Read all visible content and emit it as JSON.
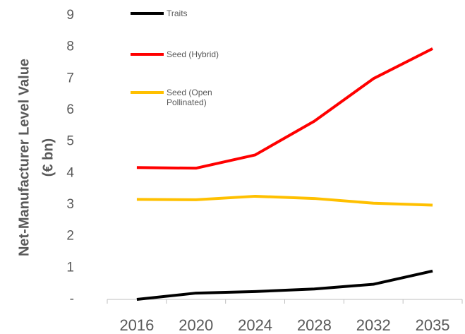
{
  "chart_data": {
    "type": "line",
    "y_label": [
      "Net-Manufacturer Level Value",
      "(€ bn)"
    ],
    "categories": [
      "2016",
      "2020",
      "2024",
      "2028",
      "2032",
      "2035"
    ],
    "series": [
      {
        "name": "Traits",
        "color": "#000000",
        "values": [
          0,
          0.2,
          0.25,
          0.33,
          0.48,
          0.9
        ]
      },
      {
        "name": "Seed (Hybrid)",
        "color": "#ff0000",
        "values": [
          4.18,
          4.16,
          4.58,
          5.65,
          7.0,
          7.95
        ]
      },
      {
        "name": "Seed (Open Pollinated)",
        "color": "#ffc000",
        "values": [
          3.17,
          3.16,
          3.27,
          3.2,
          3.05,
          2.99
        ]
      }
    ],
    "ylim": [
      0,
      9
    ],
    "yticks": [
      {
        "value": 0,
        "label": "-"
      },
      1,
      2,
      3,
      4,
      5,
      6,
      7,
      8,
      9
    ],
    "legend": "upper left"
  }
}
